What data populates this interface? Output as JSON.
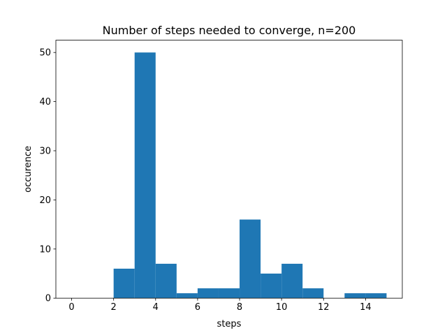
{
  "chart_data": {
    "type": "bar",
    "title": "Number of steps needed to converge, n=200",
    "xlabel": "steps",
    "ylabel": "occurence",
    "xlim": [
      -0.75,
      15.75
    ],
    "ylim": [
      0,
      52.5
    ],
    "xticks": [
      0,
      2,
      4,
      6,
      8,
      10,
      12,
      14
    ],
    "yticks": [
      0,
      10,
      20,
      30,
      40,
      50
    ],
    "grid": false,
    "bar_color": "#1f77b4",
    "bins": [
      {
        "x0": 0,
        "x1": 1,
        "count": 0
      },
      {
        "x0": 1,
        "x1": 2,
        "count": 0
      },
      {
        "x0": 2,
        "x1": 3,
        "count": 6
      },
      {
        "x0": 3,
        "x1": 4,
        "count": 50
      },
      {
        "x0": 4,
        "x1": 5,
        "count": 7
      },
      {
        "x0": 5,
        "x1": 6,
        "count": 1
      },
      {
        "x0": 6,
        "x1": 7,
        "count": 2
      },
      {
        "x0": 7,
        "x1": 8,
        "count": 2
      },
      {
        "x0": 8,
        "x1": 9,
        "count": 16
      },
      {
        "x0": 9,
        "x1": 10,
        "count": 5
      },
      {
        "x0": 10,
        "x1": 11,
        "count": 7
      },
      {
        "x0": 11,
        "x1": 12,
        "count": 2
      },
      {
        "x0": 12,
        "x1": 13,
        "count": 0
      },
      {
        "x0": 13,
        "x1": 14,
        "count": 1
      },
      {
        "x0": 14,
        "x1": 15,
        "count": 1
      }
    ]
  }
}
